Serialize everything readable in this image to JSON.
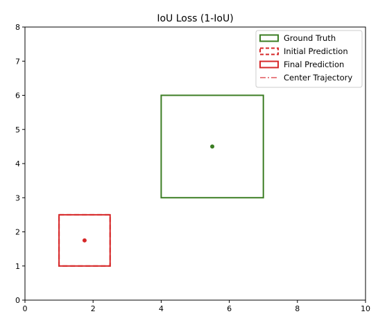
{
  "chart_data": {
    "type": "scatter",
    "title": "IoU Loss (1-IoU)",
    "xlabel": "",
    "ylabel": "",
    "xlim": [
      0,
      10
    ],
    "ylim": [
      0,
      8
    ],
    "xticks": [
      0,
      2,
      4,
      6,
      8,
      10
    ],
    "yticks": [
      0,
      1,
      2,
      3,
      4,
      5,
      6,
      7,
      8
    ],
    "grid": false,
    "legend_position": "top-right",
    "legend": [
      {
        "label": "Ground Truth",
        "style": "solid-box",
        "color": "#3b7d23"
      },
      {
        "label": "Initial Prediction",
        "style": "dashed-box",
        "color": "#d62728"
      },
      {
        "label": "Final Prediction",
        "style": "solid-box",
        "color": "#d62728"
      },
      {
        "label": "Center Trajectory",
        "style": "dashdot-line",
        "color": "#e0565b"
      }
    ],
    "boxes": [
      {
        "name": "Ground Truth",
        "x1": 4,
        "y1": 3,
        "x2": 7,
        "y2": 6,
        "color": "#3b7d23",
        "style": "solid"
      },
      {
        "name": "Initial Prediction",
        "x1": 1,
        "y1": 1,
        "x2": 2.5,
        "y2": 2.5,
        "color": "#d62728",
        "style": "dashed"
      },
      {
        "name": "Final Prediction",
        "x1": 1,
        "y1": 1,
        "x2": 2.5,
        "y2": 2.5,
        "color": "#d62728",
        "style": "solid"
      }
    ],
    "points": [
      {
        "name": "ground-truth-center",
        "x": 5.5,
        "y": 4.5,
        "color": "#3b7d23"
      },
      {
        "name": "prediction-center",
        "x": 1.75,
        "y": 1.75,
        "color": "#d62728"
      }
    ],
    "trajectory": {
      "x": [
        1.75,
        1.75
      ],
      "y": [
        1.75,
        1.75
      ],
      "color": "#e0565b"
    }
  }
}
